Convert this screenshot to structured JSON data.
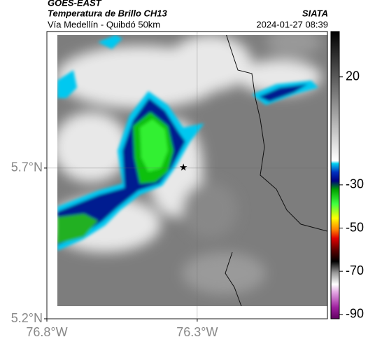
{
  "header": {
    "title": "GOES-EAST",
    "subtitle": "Temperatura de Brillo CH13",
    "source": "SIATA",
    "location": "Vía Medellín - Quibdó 50km",
    "datetime": "2024-01-27 08:39"
  },
  "chart_data": {
    "type": "map",
    "xlim": [
      -76.8,
      -75.867
    ],
    "ylim": [
      5.2,
      6.153
    ],
    "xticks": [
      {
        "value": -76.8,
        "label": "76.8°W"
      },
      {
        "value": -76.3,
        "label": "76.3°W"
      }
    ],
    "yticks": [
      {
        "value": 5.2,
        "label": "5.2°N"
      },
      {
        "value": 5.7,
        "label": "5.7°N"
      }
    ],
    "grid": true,
    "marker": {
      "lon": -76.346,
      "lat": 5.7
    },
    "colorbar": {
      "lim": [
        -92,
        41
      ],
      "ticks": [
        20,
        -30,
        -50,
        -70,
        -90
      ]
    }
  }
}
